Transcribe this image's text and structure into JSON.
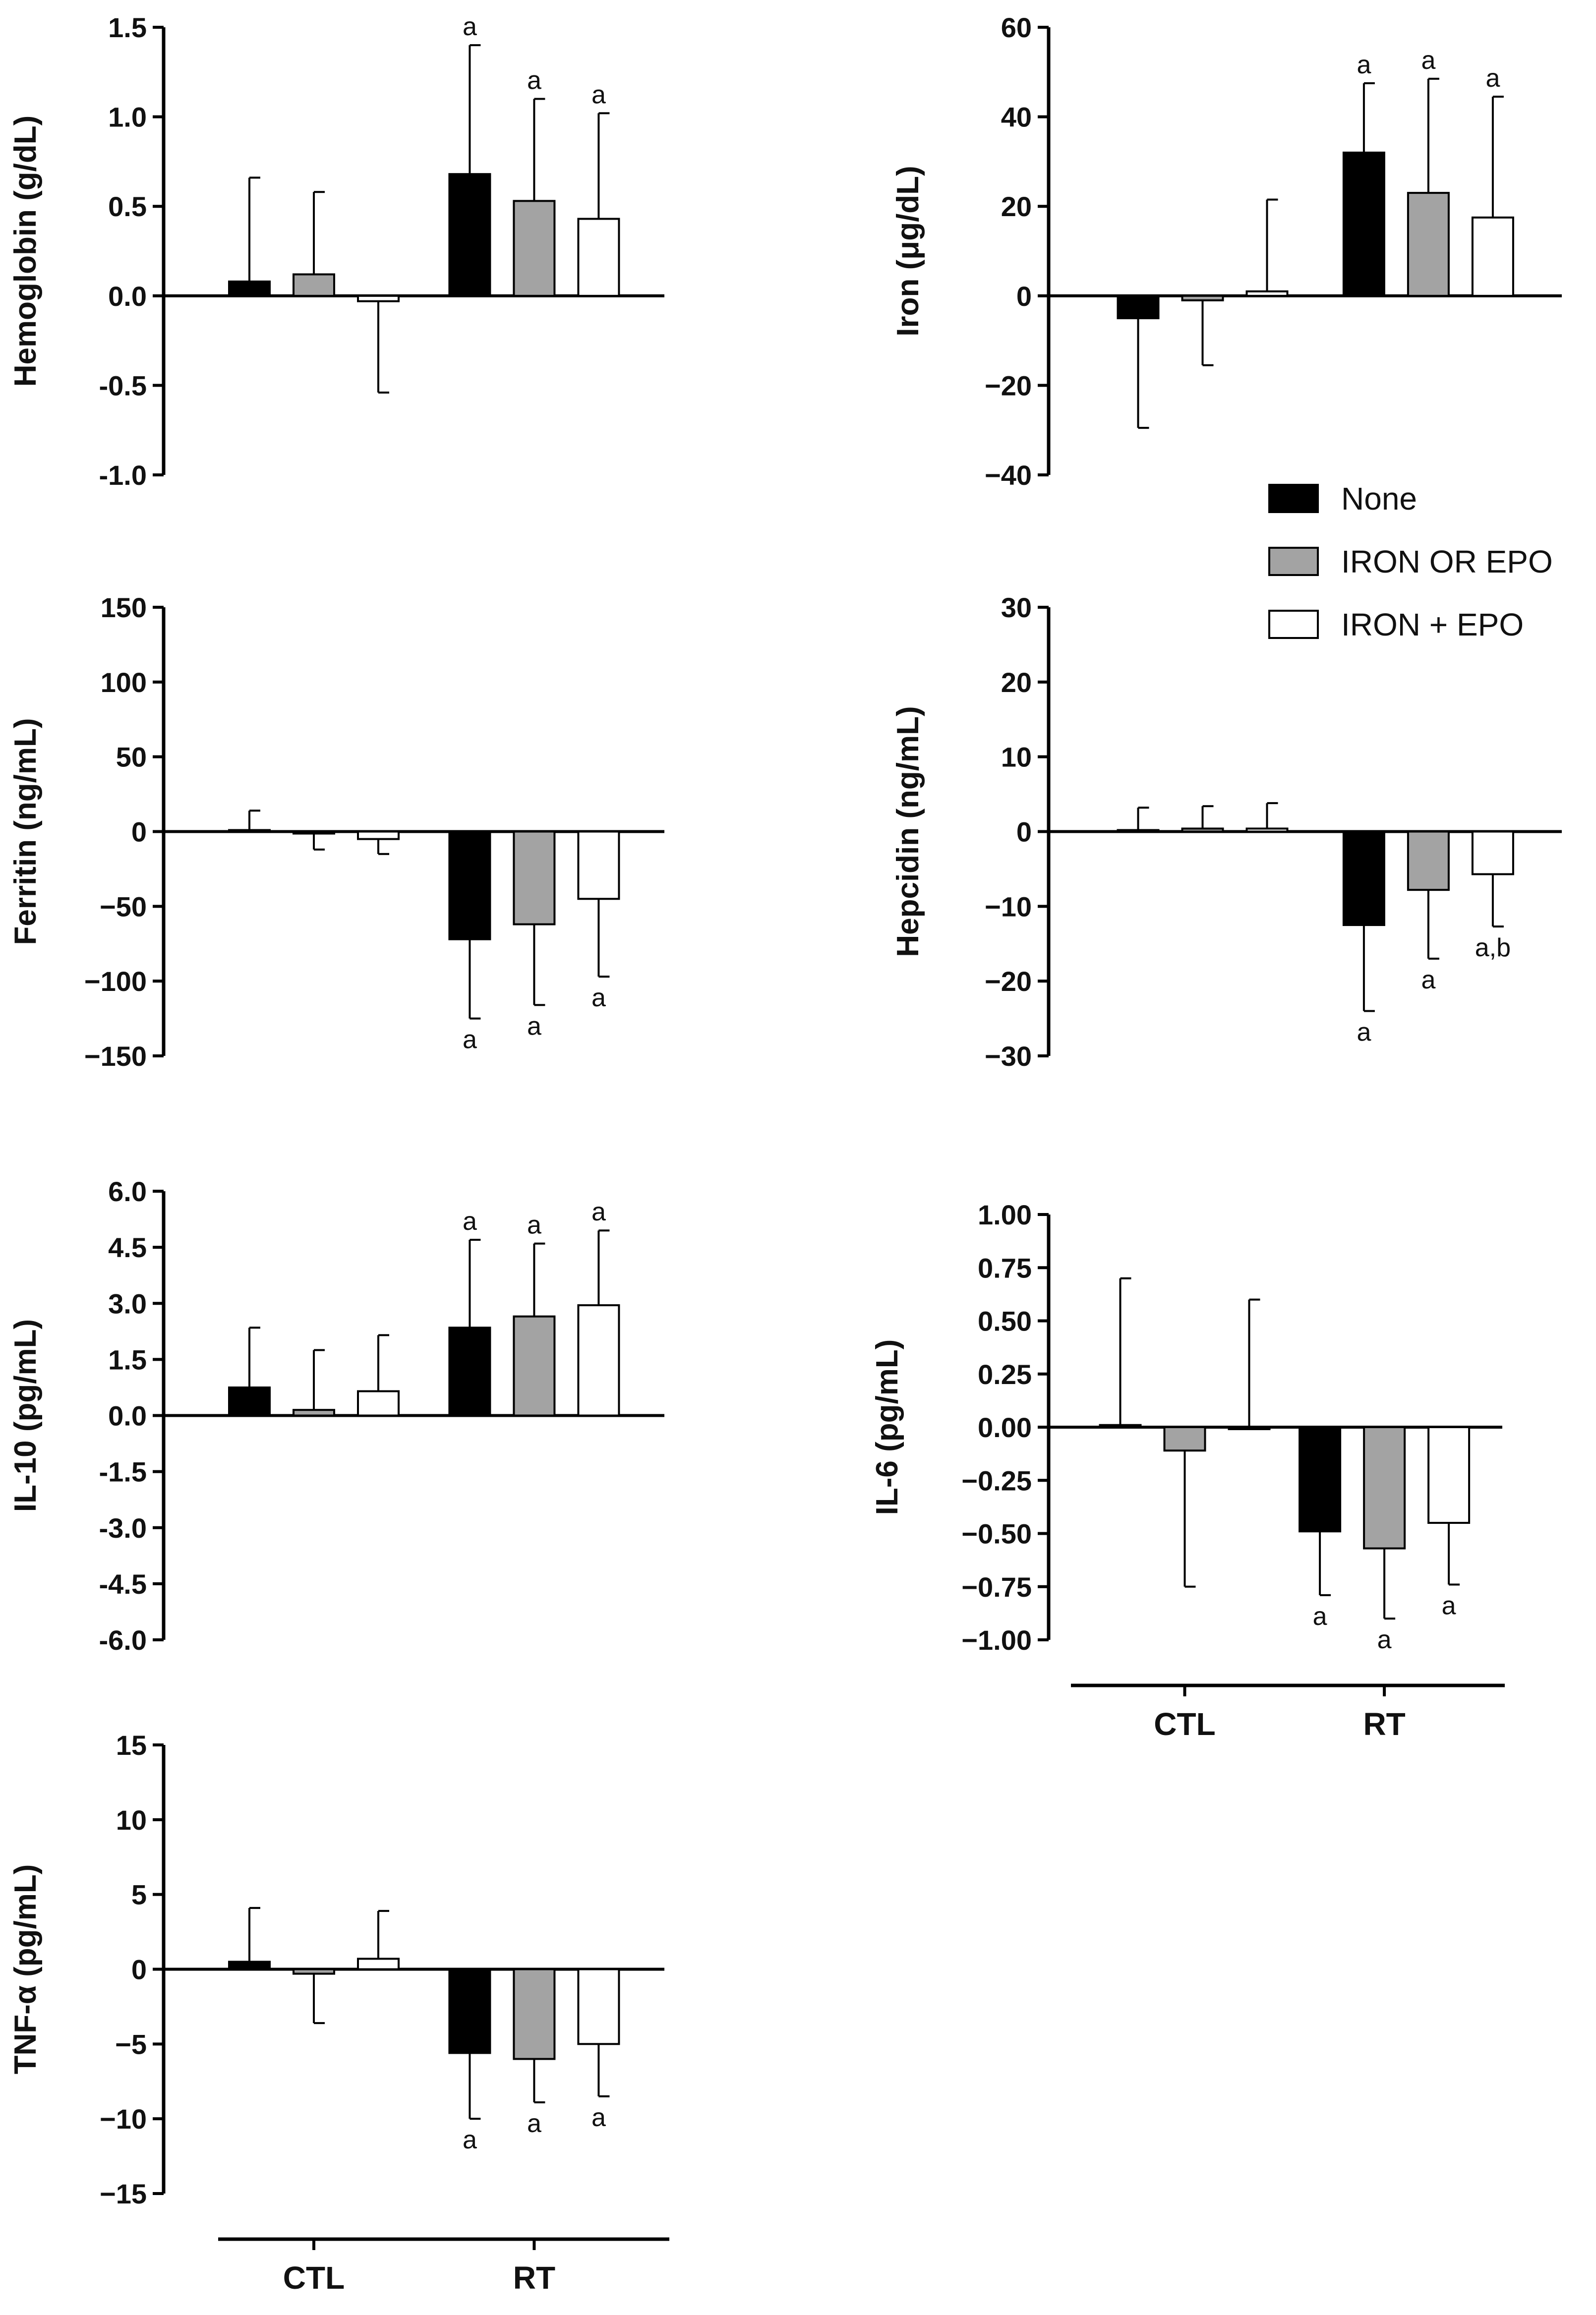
{
  "legend": {
    "items": [
      {
        "name": "None",
        "color": "#000000"
      },
      {
        "name": "IRON OR EPO",
        "color": "#a3a3a3"
      },
      {
        "name": "IRON + EPO",
        "color": "#ffffff"
      }
    ]
  },
  "chart_data": [
    {
      "type": "bar",
      "id": "hemoglobin",
      "ylabel": "Hemoglobin (g/dL)",
      "ylim": [
        -1.0,
        1.5
      ],
      "yticks": [
        "1.5",
        "1.0",
        "0.5",
        "0.0",
        "-0.5",
        "-1.0"
      ],
      "categories": [
        "CTL",
        "RT"
      ],
      "series": [
        {
          "name": "None",
          "values": [
            0.08,
            0.68
          ],
          "errors": [
            0.58,
            0.72
          ],
          "sig": [
            "",
            "a"
          ]
        },
        {
          "name": "IRON OR EPO",
          "values": [
            0.12,
            0.53
          ],
          "errors": [
            0.46,
            0.57
          ],
          "sig": [
            "",
            "a"
          ]
        },
        {
          "name": "IRON + EPO",
          "values": [
            -0.03,
            0.43
          ],
          "errors": [
            0.51,
            0.59
          ],
          "sig": [
            "",
            "a"
          ]
        }
      ]
    },
    {
      "type": "bar",
      "id": "iron",
      "ylabel": "Iron (μg/dL)",
      "ylim": [
        -40,
        60
      ],
      "yticks": [
        "60",
        "40",
        "20",
        "0",
        "−20",
        "−40"
      ],
      "categories": [
        "CTL",
        "RT"
      ],
      "series": [
        {
          "name": "None",
          "values": [
            -5,
            32
          ],
          "errors": [
            24.5,
            15.5
          ],
          "sig": [
            "",
            "a"
          ]
        },
        {
          "name": "IRON OR EPO",
          "values": [
            -1,
            23
          ],
          "errors": [
            14.5,
            25.5
          ],
          "sig": [
            "",
            "a"
          ]
        },
        {
          "name": "IRON + EPO",
          "values": [
            1,
            17.5
          ],
          "errors": [
            20.5,
            27
          ],
          "sig": [
            "",
            "a"
          ]
        }
      ]
    },
    {
      "type": "bar",
      "id": "ferritin",
      "ylabel": "Ferritin (ng/mL)",
      "ylim": [
        -150,
        150
      ],
      "yticks": [
        "150",
        "100",
        "50",
        "0",
        "−50",
        "−100",
        "−150"
      ],
      "categories": [
        "CTL",
        "RT"
      ],
      "series": [
        {
          "name": "None",
          "values": [
            1,
            -72
          ],
          "errors": [
            13,
            53
          ],
          "sig": [
            "",
            "a"
          ]
        },
        {
          "name": "IRON OR EPO",
          "values": [
            -1,
            -62
          ],
          "errors": [
            11,
            54
          ],
          "sig": [
            "",
            "a"
          ]
        },
        {
          "name": "IRON + EPO",
          "values": [
            -5,
            -45
          ],
          "errors": [
            10,
            52
          ],
          "sig": [
            "",
            "a"
          ]
        }
      ]
    },
    {
      "type": "bar",
      "id": "hepcidin",
      "ylabel": "Hepcidin (ng/mL)",
      "ylim": [
        -30,
        30
      ],
      "yticks": [
        "30",
        "20",
        "10",
        "0",
        "−10",
        "−20",
        "−30"
      ],
      "categories": [
        "CTL",
        "RT"
      ],
      "series": [
        {
          "name": "None",
          "values": [
            0.2,
            -12.5
          ],
          "errors": [
            3,
            11.5
          ],
          "sig": [
            "",
            "a"
          ]
        },
        {
          "name": "IRON OR EPO",
          "values": [
            0.4,
            -7.8
          ],
          "errors": [
            3,
            9.2
          ],
          "sig": [
            "",
            "a"
          ]
        },
        {
          "name": "IRON + EPO",
          "values": [
            0.4,
            -5.7
          ],
          "errors": [
            3.4,
            7
          ],
          "sig": [
            "",
            "a,b"
          ]
        }
      ]
    },
    {
      "type": "bar",
      "id": "il10",
      "ylabel": "IL-10 (pg/mL)",
      "ylim": [
        -6.0,
        6.0
      ],
      "yticks": [
        "6.0",
        "4.5",
        "3.0",
        "1.5",
        "0.0",
        "-1.5",
        "-3.0",
        "-4.5",
        "-6.0"
      ],
      "categories": [
        "CTL",
        "RT"
      ],
      "series": [
        {
          "name": "None",
          "values": [
            0.75,
            2.35
          ],
          "errors": [
            1.6,
            2.35
          ],
          "sig": [
            "",
            "a"
          ]
        },
        {
          "name": "IRON OR EPO",
          "values": [
            0.15,
            2.65
          ],
          "errors": [
            1.6,
            1.95
          ],
          "sig": [
            "",
            "a"
          ]
        },
        {
          "name": "IRON + EPO",
          "values": [
            0.65,
            2.95
          ],
          "errors": [
            1.5,
            2.0
          ],
          "sig": [
            "",
            "a"
          ]
        }
      ]
    },
    {
      "type": "bar",
      "id": "il6",
      "ylabel": "IL-6 (pg/mL)",
      "ylim": [
        -1.0,
        1.0
      ],
      "yticks": [
        "1.00",
        "0.75",
        "0.50",
        "0.25",
        "0.00",
        "−0.25",
        "−0.50",
        "−0.75",
        "−1.00"
      ],
      "categories": [
        "CTL",
        "RT"
      ],
      "xlabels_shown": true,
      "series": [
        {
          "name": "None",
          "values": [
            0.01,
            -0.49
          ],
          "errors": [
            0.69,
            0.3
          ],
          "sig": [
            "",
            "a"
          ]
        },
        {
          "name": "IRON OR EPO",
          "values": [
            -0.11,
            -0.57
          ],
          "errors": [
            0.64,
            0.33
          ],
          "sig": [
            "",
            "a"
          ]
        },
        {
          "name": "IRON + EPO",
          "values": [
            0.0,
            -0.45
          ],
          "errors": [
            0.6,
            0.29
          ],
          "sig": [
            "",
            "a"
          ]
        }
      ]
    },
    {
      "type": "bar",
      "id": "tnfa",
      "ylabel": "TNF-α (pg/mL)",
      "ylim": [
        -15,
        15
      ],
      "yticks": [
        "15",
        "10",
        "5",
        "0",
        "−5",
        "−10",
        "−15"
      ],
      "categories": [
        "CTL",
        "RT"
      ],
      "xlabels_shown": true,
      "series": [
        {
          "name": "None",
          "values": [
            0.5,
            -5.6
          ],
          "errors": [
            3.6,
            4.4
          ],
          "sig": [
            "",
            "a"
          ]
        },
        {
          "name": "IRON OR EPO",
          "values": [
            -0.3,
            -6
          ],
          "errors": [
            3.3,
            2.9
          ],
          "sig": [
            "",
            "a"
          ]
        },
        {
          "name": "IRON + EPO",
          "values": [
            0.7,
            -5
          ],
          "errors": [
            3.2,
            3.5
          ],
          "sig": [
            "",
            "a"
          ]
        }
      ]
    }
  ]
}
